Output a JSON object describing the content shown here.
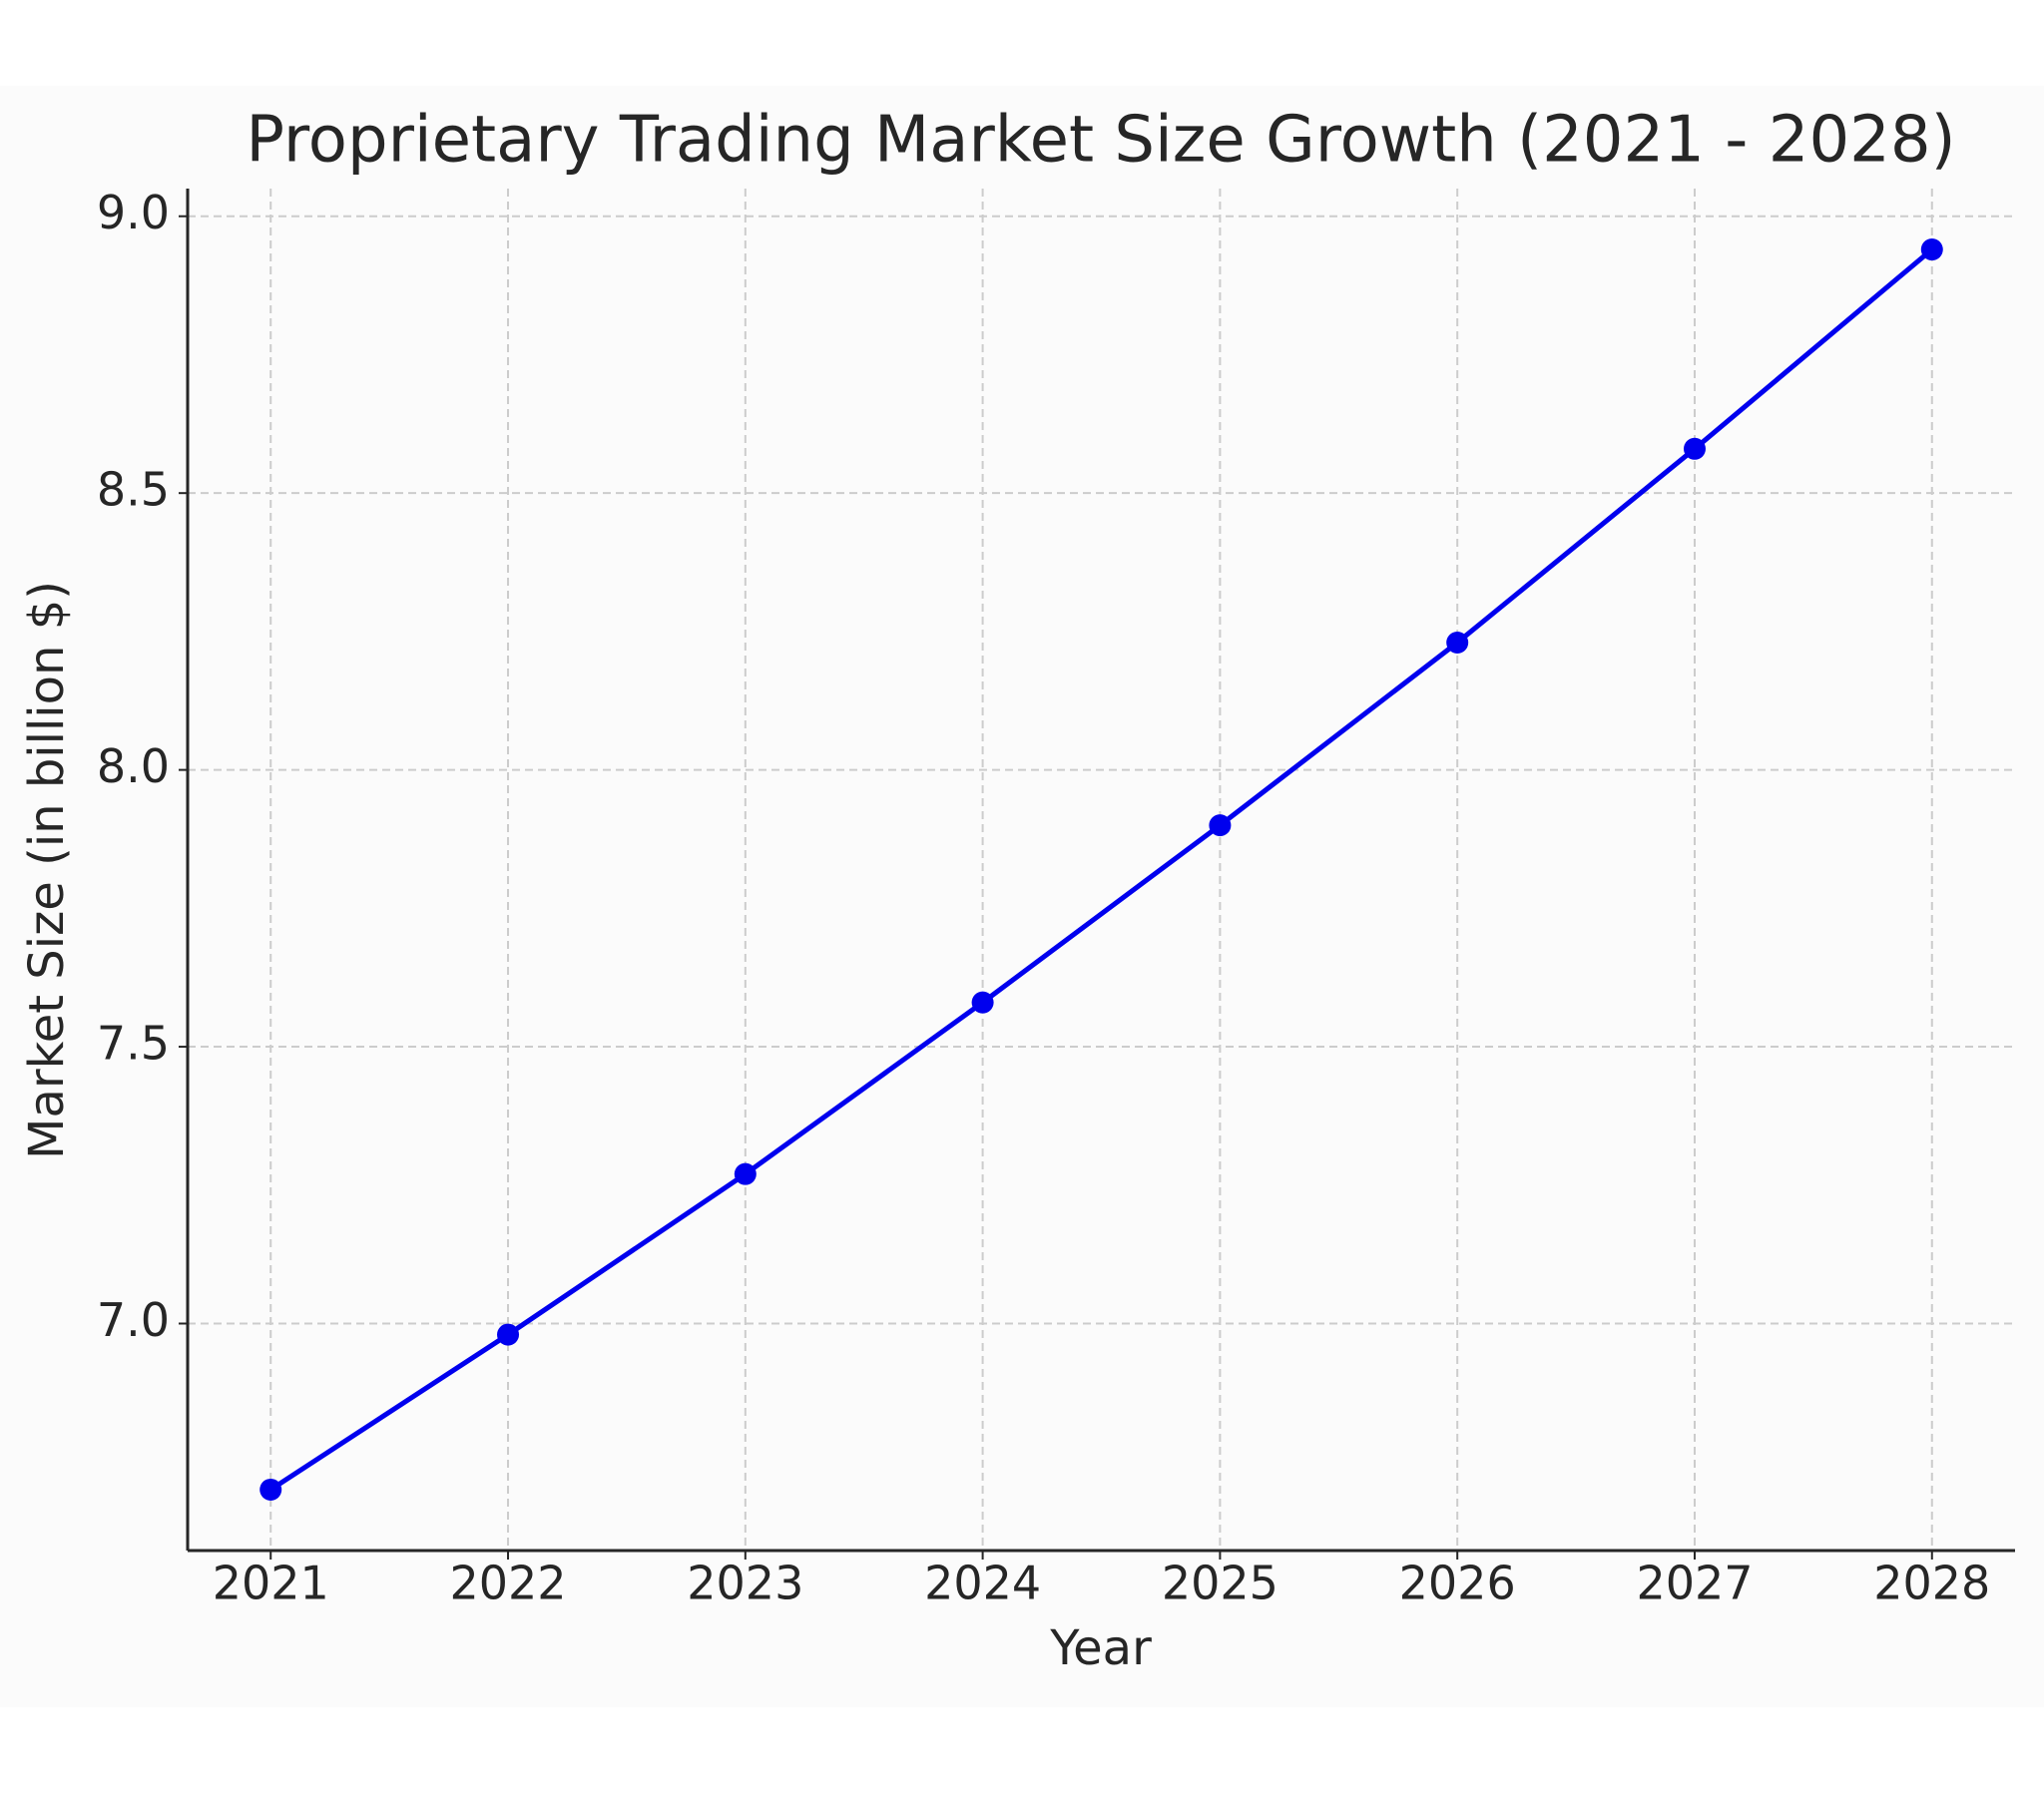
{
  "chart_data": {
    "type": "line",
    "title": "Proprietary Trading Market Size Growth (2021 - 2028)",
    "x_label": "Year",
    "y_label": "Market Size (in billion $)",
    "x": [
      2021,
      2022,
      2023,
      2024,
      2025,
      2026,
      2027,
      2028
    ],
    "series": [
      {
        "name": "Market Size",
        "color": "#0000ee",
        "values": [
          6.7,
          6.98,
          7.27,
          7.58,
          7.9,
          8.23,
          8.58,
          8.94
        ]
      }
    ],
    "xlim": [
      2020.65,
      2028.35
    ],
    "xticks": [
      2021,
      2022,
      2023,
      2024,
      2025,
      2026,
      2027,
      2028
    ],
    "ylim": [
      6.59,
      9.05
    ],
    "yticks": [
      {
        "value": 7,
        "label": "7.0"
      },
      7.5,
      {
        "value": 8,
        "label": "8.0"
      },
      8.5,
      {
        "value": 9,
        "label": "9.0"
      }
    ],
    "grid": true
  }
}
